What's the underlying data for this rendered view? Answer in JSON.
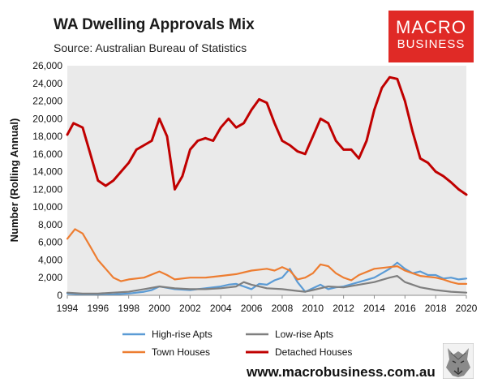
{
  "header": {
    "title": "WA Dwelling Approvals Mix",
    "subtitle": "Source: Australian Bureau of Statistics",
    "logo_line1": "MACRO",
    "logo_line2": "BUSINESS"
  },
  "footer": {
    "url": "www.macrobusiness.com.au"
  },
  "colors": {
    "brand": "#e02a26",
    "plot_bg": "#eaeaea"
  },
  "chart_data": {
    "type": "line",
    "ylabel": "Number (Rolling Annual)",
    "xlim": [
      1994,
      2020
    ],
    "ylim": [
      0,
      26000
    ],
    "yticks": [
      0,
      2000,
      4000,
      6000,
      8000,
      10000,
      12000,
      14000,
      16000,
      18000,
      20000,
      22000,
      24000,
      26000
    ],
    "ytick_labels": [
      "0",
      "2,000",
      "4,000",
      "6,000",
      "8,000",
      "10,000",
      "12,000",
      "14,000",
      "16,000",
      "18,000",
      "20,000",
      "22,000",
      "24,000",
      "26,000"
    ],
    "xticks": [
      1994,
      1996,
      1998,
      2000,
      2002,
      2004,
      2006,
      2008,
      2010,
      2012,
      2014,
      2016,
      2018,
      2020
    ],
    "xtick_labels": [
      "1994",
      "1996",
      "1998",
      "2000",
      "2002",
      "2004",
      "2006",
      "2008",
      "2010",
      "2012",
      "2014",
      "2016",
      "2018",
      "2020"
    ],
    "grid": false,
    "legend_position": "bottom",
    "series": [
      {
        "name": "High-rise Apts",
        "color": "#5b9bd5",
        "x": [
          1994,
          1995,
          1996,
          1997,
          1998,
          1999,
          1999.5,
          2000,
          2001,
          2002,
          2003,
          2004,
          2004.5,
          2005,
          2005.5,
          2006,
          2006.5,
          2007,
          2007.5,
          2008,
          2008.5,
          2009,
          2009.5,
          2010,
          2010.5,
          2011,
          2011.5,
          2012,
          2013,
          2014,
          2014.5,
          2015,
          2015.5,
          2016,
          2016.5,
          2017,
          2017.5,
          2018,
          2018.5,
          2019,
          2019.5,
          2020
        ],
        "y": [
          200,
          100,
          50,
          100,
          200,
          400,
          600,
          1000,
          700,
          600,
          800,
          1000,
          1200,
          1300,
          1000,
          700,
          1300,
          1200,
          1700,
          2000,
          3000,
          1500,
          400,
          800,
          1200,
          700,
          900,
          1000,
          1500,
          2000,
          2500,
          3000,
          3700,
          3000,
          2500,
          2700,
          2300,
          2300,
          1900,
          2000,
          1800,
          1900
        ]
      },
      {
        "name": "Low-rise Apts",
        "color": "#7f7f7f",
        "x": [
          1994,
          1995,
          1996,
          1997,
          1998,
          1999,
          2000,
          2001,
          2002,
          2003,
          2004,
          2005,
          2005.5,
          2006,
          2006.5,
          2007,
          2008,
          2009,
          2009.5,
          2010,
          2011,
          2012,
          2013,
          2014,
          2015,
          2015.5,
          2016,
          2016.5,
          2017,
          2018,
          2019,
          2020
        ],
        "y": [
          300,
          200,
          200,
          300,
          400,
          700,
          1000,
          800,
          700,
          700,
          800,
          1000,
          1500,
          1200,
          1000,
          800,
          700,
          500,
          400,
          600,
          1000,
          900,
          1200,
          1500,
          2000,
          2200,
          1500,
          1200,
          900,
          600,
          400,
          300
        ]
      },
      {
        "name": "Town Houses",
        "color": "#ed7d31",
        "x": [
          1994,
          1994.5,
          1995,
          1995.5,
          1996,
          1996.5,
          1997,
          1997.5,
          1998,
          1999,
          2000,
          2000.5,
          2001,
          2002,
          2003,
          2004,
          2005,
          2006,
          2007,
          2007.5,
          2008,
          2008.5,
          2009,
          2009.5,
          2010,
          2010.5,
          2011,
          2011.5,
          2012,
          2012.5,
          2013,
          2014,
          2015,
          2015.5,
          2016,
          2016.5,
          2017,
          2018,
          2018.5,
          2019,
          2019.5,
          2020
        ],
        "y": [
          6400,
          7500,
          7000,
          5500,
          4000,
          3000,
          2000,
          1600,
          1800,
          2000,
          2700,
          2300,
          1800,
          2000,
          2000,
          2200,
          2400,
          2800,
          3000,
          2800,
          3200,
          2800,
          1800,
          2000,
          2500,
          3500,
          3300,
          2500,
          2000,
          1700,
          2300,
          3000,
          3200,
          3300,
          2800,
          2500,
          2200,
          2000,
          1800,
          1500,
          1300,
          1300
        ]
      },
      {
        "name": "Detached Houses",
        "color": "#c00000",
        "x": [
          1994,
          1994.4,
          1995,
          1995.5,
          1996,
          1996.5,
          1997,
          1997.5,
          1998,
          1998.5,
          1999,
          1999.5,
          2000,
          2000.5,
          2001,
          2001.5,
          2002,
          2002.5,
          2003,
          2003.5,
          2004,
          2004.5,
          2005,
          2005.5,
          2006,
          2006.5,
          2007,
          2007.5,
          2008,
          2008.5,
          2009,
          2009.5,
          2010,
          2010.5,
          2011,
          2011.5,
          2012,
          2012.5,
          2013,
          2013.5,
          2014,
          2014.5,
          2015,
          2015.5,
          2016,
          2016.5,
          2017,
          2017.5,
          2018,
          2018.5,
          2019,
          2019.5,
          2020
        ],
        "y": [
          18200,
          19500,
          19000,
          16000,
          13000,
          12400,
          13000,
          14000,
          15000,
          16500,
          17000,
          17500,
          20000,
          18000,
          12000,
          13500,
          16500,
          17500,
          17800,
          17500,
          19000,
          20000,
          19000,
          19500,
          21000,
          22200,
          21800,
          19500,
          17500,
          17000,
          16300,
          16000,
          18000,
          20000,
          19500,
          17500,
          16500,
          16500,
          15500,
          17500,
          21000,
          23500,
          24700,
          24500,
          22000,
          18500,
          15500,
          15000,
          14000,
          13500,
          12800,
          12000,
          11400
        ]
      }
    ]
  }
}
